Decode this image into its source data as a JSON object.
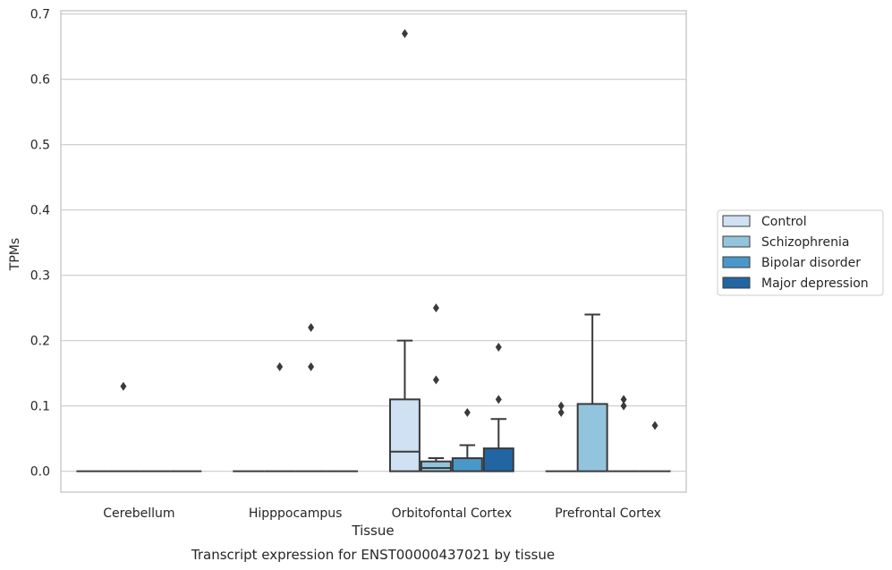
{
  "chart_data": {
    "type": "box",
    "title": "",
    "xlabel": "Tissue",
    "ylabel": "TPMs",
    "caption": "Transcript expression for ENST00000437021 by tissue",
    "ylim": [
      -0.032,
      0.705
    ],
    "yticks": [
      0.0,
      0.1,
      0.2,
      0.3,
      0.4,
      0.5,
      0.6,
      0.7
    ],
    "ytick_labels": [
      "0.0",
      "0.1",
      "0.2",
      "0.3",
      "0.4",
      "0.5",
      "0.6",
      "0.7"
    ],
    "grid": "horizontal",
    "legend_position": "right",
    "categories": [
      "Cerebellum",
      "Hipppocampus",
      "Orbitofontal Cortex",
      "Prefrontal Cortex"
    ],
    "series": [
      {
        "name": "Control",
        "color": "#cfe1f2",
        "boxes": [
          {
            "q1": 0,
            "median": 0,
            "q3": 0,
            "whislo": 0,
            "whishi": 0,
            "fliers": []
          },
          {
            "q1": 0,
            "median": 0,
            "q3": 0,
            "whislo": 0,
            "whishi": 0,
            "fliers": []
          },
          {
            "q1": 0,
            "median": 0.03,
            "q3": 0.11,
            "whislo": 0,
            "whishi": 0.2,
            "fliers": [
              0.67
            ]
          },
          {
            "q1": 0,
            "median": 0,
            "q3": 0,
            "whislo": 0,
            "whishi": 0,
            "fliers": [
              0.09,
              0.1
            ]
          }
        ]
      },
      {
        "name": "Schizophrenia",
        "color": "#93c4de",
        "boxes": [
          {
            "q1": 0,
            "median": 0,
            "q3": 0,
            "whislo": 0,
            "whishi": 0,
            "fliers": [
              0.13
            ]
          },
          {
            "q1": 0,
            "median": 0,
            "q3": 0,
            "whislo": 0,
            "whishi": 0,
            "fliers": [
              0.16
            ]
          },
          {
            "q1": 0,
            "median": 0.005,
            "q3": 0.015,
            "whislo": 0,
            "whishi": 0.02,
            "fliers": [
              0.14,
              0.25
            ]
          },
          {
            "q1": 0,
            "median": 0,
            "q3": 0.103,
            "whislo": 0,
            "whishi": 0.24,
            "fliers": []
          }
        ]
      },
      {
        "name": "Bipolar disorder",
        "color": "#4a98c9",
        "boxes": [
          {
            "q1": 0,
            "median": 0,
            "q3": 0,
            "whislo": 0,
            "whishi": 0,
            "fliers": []
          },
          {
            "q1": 0,
            "median": 0,
            "q3": 0,
            "whislo": 0,
            "whishi": 0,
            "fliers": [
              0.16,
              0.22
            ]
          },
          {
            "q1": 0,
            "median": 0,
            "q3": 0.02,
            "whislo": 0,
            "whishi": 0.04,
            "fliers": [
              0.09
            ]
          },
          {
            "q1": 0,
            "median": 0,
            "q3": 0,
            "whislo": 0,
            "whishi": 0,
            "fliers": [
              0.1,
              0.11
            ]
          }
        ]
      },
      {
        "name": "Major depression",
        "color": "#2265a3",
        "boxes": [
          {
            "q1": 0,
            "median": 0,
            "q3": 0,
            "whislo": 0,
            "whishi": 0,
            "fliers": []
          },
          {
            "q1": 0,
            "median": 0,
            "q3": 0,
            "whislo": 0,
            "whishi": 0,
            "fliers": []
          },
          {
            "q1": 0,
            "median": 0,
            "q3": 0.035,
            "whislo": 0,
            "whishi": 0.08,
            "fliers": [
              0.11,
              0.19
            ]
          },
          {
            "q1": 0,
            "median": 0,
            "q3": 0,
            "whislo": 0,
            "whishi": 0,
            "fliers": [
              0.07
            ]
          }
        ]
      }
    ]
  }
}
